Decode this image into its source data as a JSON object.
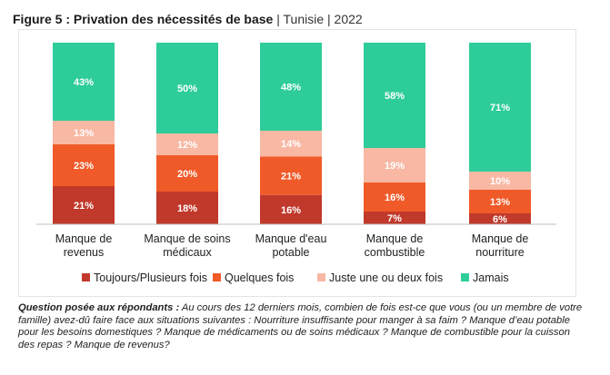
{
  "figure": {
    "title_bold": "Figure 5 : Privation des nécessités de base",
    "subtitle": "| Tunisie | 2022"
  },
  "chart_data": {
    "type": "bar",
    "stacked": true,
    "orientation": "vertical",
    "title": "Figure 5 : Privation des nécessités de base | Tunisie | 2022",
    "categories": [
      [
        "Manque de",
        "revenus"
      ],
      [
        "Manque de soins",
        "médicaux"
      ],
      [
        "Manque d'eau",
        "potable"
      ],
      [
        "Manque de",
        "combustible"
      ],
      [
        "Manque de",
        "nourriture"
      ]
    ],
    "series": [
      {
        "name": "Toujours/Plusieurs fois",
        "color": "#c0392b",
        "values": [
          21,
          18,
          16,
          7,
          6
        ],
        "labels": [
          "21%",
          "18%",
          "16%",
          "7%",
          "6%"
        ],
        "label_color": "#ffffff"
      },
      {
        "name": "Quelques fois",
        "color": "#f05a28",
        "values": [
          23,
          20,
          21,
          16,
          13
        ],
        "labels": [
          "23%",
          "20%",
          "21%",
          "16%",
          "13%"
        ],
        "label_color": "#ffffff"
      },
      {
        "name": "Juste une ou deux fois",
        "color": "#f8b8a4",
        "values": [
          13,
          12,
          14,
          19,
          10
        ],
        "labels": [
          "13%",
          "12%",
          "14%",
          "19%",
          "10%"
        ],
        "label_color": "#ffffff"
      },
      {
        "name": "Jamais",
        "color": "#2ecc9a",
        "values": [
          43,
          50,
          48,
          58,
          71
        ],
        "labels": [
          "43%",
          "50%",
          "48%",
          "58%",
          "71%"
        ],
        "label_color": "#ffffff"
      }
    ],
    "ylim": [
      0,
      100
    ],
    "legend_position": "bottom",
    "grid": false
  },
  "question": {
    "label": "Question posée aux répondants :",
    "text": " Au cours des 12 derniers mois, combien de fois est-ce que vous (ou un membre de votre famille) avez-dû faire face aux situations suivantes : Nourriture insuffisante pour manger à sa faim ? Manque d’eau potable pour les besoins domestiques ? Manque de médicaments ou de soins médicaux ? Manque de combustible pour la cuisson des repas ? Manque de revenus?"
  }
}
